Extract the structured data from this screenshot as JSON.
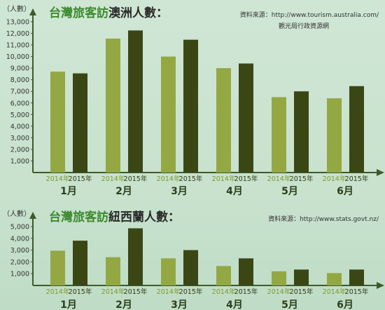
{
  "colors": {
    "bar_2014": "#93a843",
    "bar_2015": "#3a4715",
    "axis": "#3e5a2a",
    "title_green": "#3c8a2e",
    "title_dark": "#2a2a2a",
    "month_text": "#2b3e1a",
    "year_2014": "#7e9a2d",
    "year_2015": "#2f3a14"
  },
  "chart_data": [
    {
      "type": "bar",
      "title_prefix": "台灣旅客訪",
      "title_suffix": "澳洲人數：",
      "unit_label": "（人數）",
      "source_lines": [
        "資料來源：http://www.tourism.australia.com/",
        "觀光局行政資源網"
      ],
      "categories": [
        "1月",
        "2月",
        "3月",
        "4月",
        "5月",
        "6月"
      ],
      "series": [
        {
          "name": "2014年",
          "values": [
            8700,
            11550,
            10000,
            9000,
            6500,
            6400
          ]
        },
        {
          "name": "2015年",
          "values": [
            8550,
            12250,
            11450,
            9400,
            7000,
            7450
          ]
        }
      ],
      "yticks": [
        "1,000",
        "2,000",
        "3,000",
        "4,000",
        "5,000",
        "6,000",
        "7,000",
        "8,000",
        "9,000",
        "10,000",
        "11,000",
        "12,000",
        "13,000"
      ],
      "ylim": [
        0,
        13000
      ]
    },
    {
      "type": "bar",
      "title_prefix": "台灣旅客訪",
      "title_suffix": "紐西蘭人數：",
      "unit_label": "（人數）",
      "source_lines": [
        "資料來源：http://www.stats.govt.nz/"
      ],
      "categories": [
        "1月",
        "2月",
        "3月",
        "4月",
        "5月",
        "6月"
      ],
      "series": [
        {
          "name": "2014年",
          "values": [
            2950,
            2400,
            2300,
            1650,
            1200,
            1050
          ]
        },
        {
          "name": "2015年",
          "values": [
            3800,
            4850,
            3000,
            2300,
            1350,
            1350
          ]
        }
      ],
      "yticks": [
        "1,000",
        "2,000",
        "3,000",
        "4,000",
        "5,000"
      ],
      "ylim": [
        0,
        5000
      ]
    }
  ]
}
